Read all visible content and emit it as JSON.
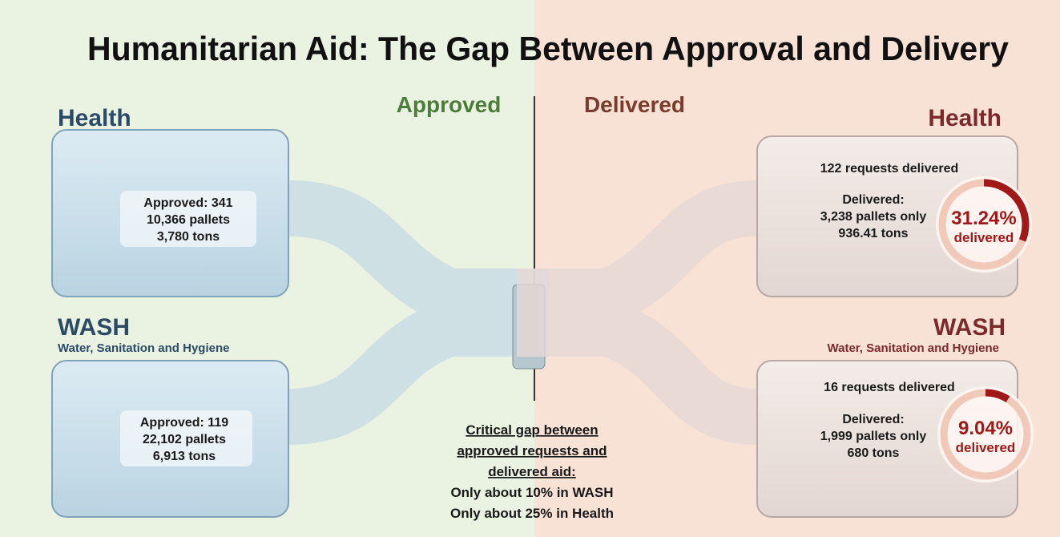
{
  "title": "Humanitarian Aid: The Gap Between Approval and Delivery",
  "approved_label": "Approved",
  "delivered_label": "Delivered",
  "approved": {
    "health": {
      "heading": "Health",
      "lines": [
        "Approved: 341",
        "10,366 pallets",
        "3,780 tons"
      ]
    },
    "wash": {
      "heading": "WASH",
      "subheading": "Water, Sanitation and Hygiene",
      "lines": [
        "Approved: 119",
        "22,102 pallets",
        "6,913 tons"
      ]
    }
  },
  "delivered": {
    "health": {
      "heading": "Health",
      "requests": "122 requests delivered",
      "lines": [
        "Delivered:",
        "3,238 pallets only",
        "936.41 tons"
      ],
      "percent": {
        "value": 31.24,
        "label": "31.24%"
      },
      "percent_caption": "delivered"
    },
    "wash": {
      "heading": "WASH",
      "subheading": "Water, Sanitation and Hygiene",
      "requests": "16 requests delivered",
      "lines": [
        "Delivered:",
        "1,999 pallets only",
        "680 tons"
      ],
      "percent": {
        "value": 9.04,
        "label": "9.04%"
      },
      "percent_caption": "delivered"
    }
  },
  "gap_note": {
    "lines": [
      "Critical gap between",
      "approved requests and",
      "delivered aid:",
      "Only about 10% in WASH",
      "Only about 25% in Health"
    ]
  }
}
